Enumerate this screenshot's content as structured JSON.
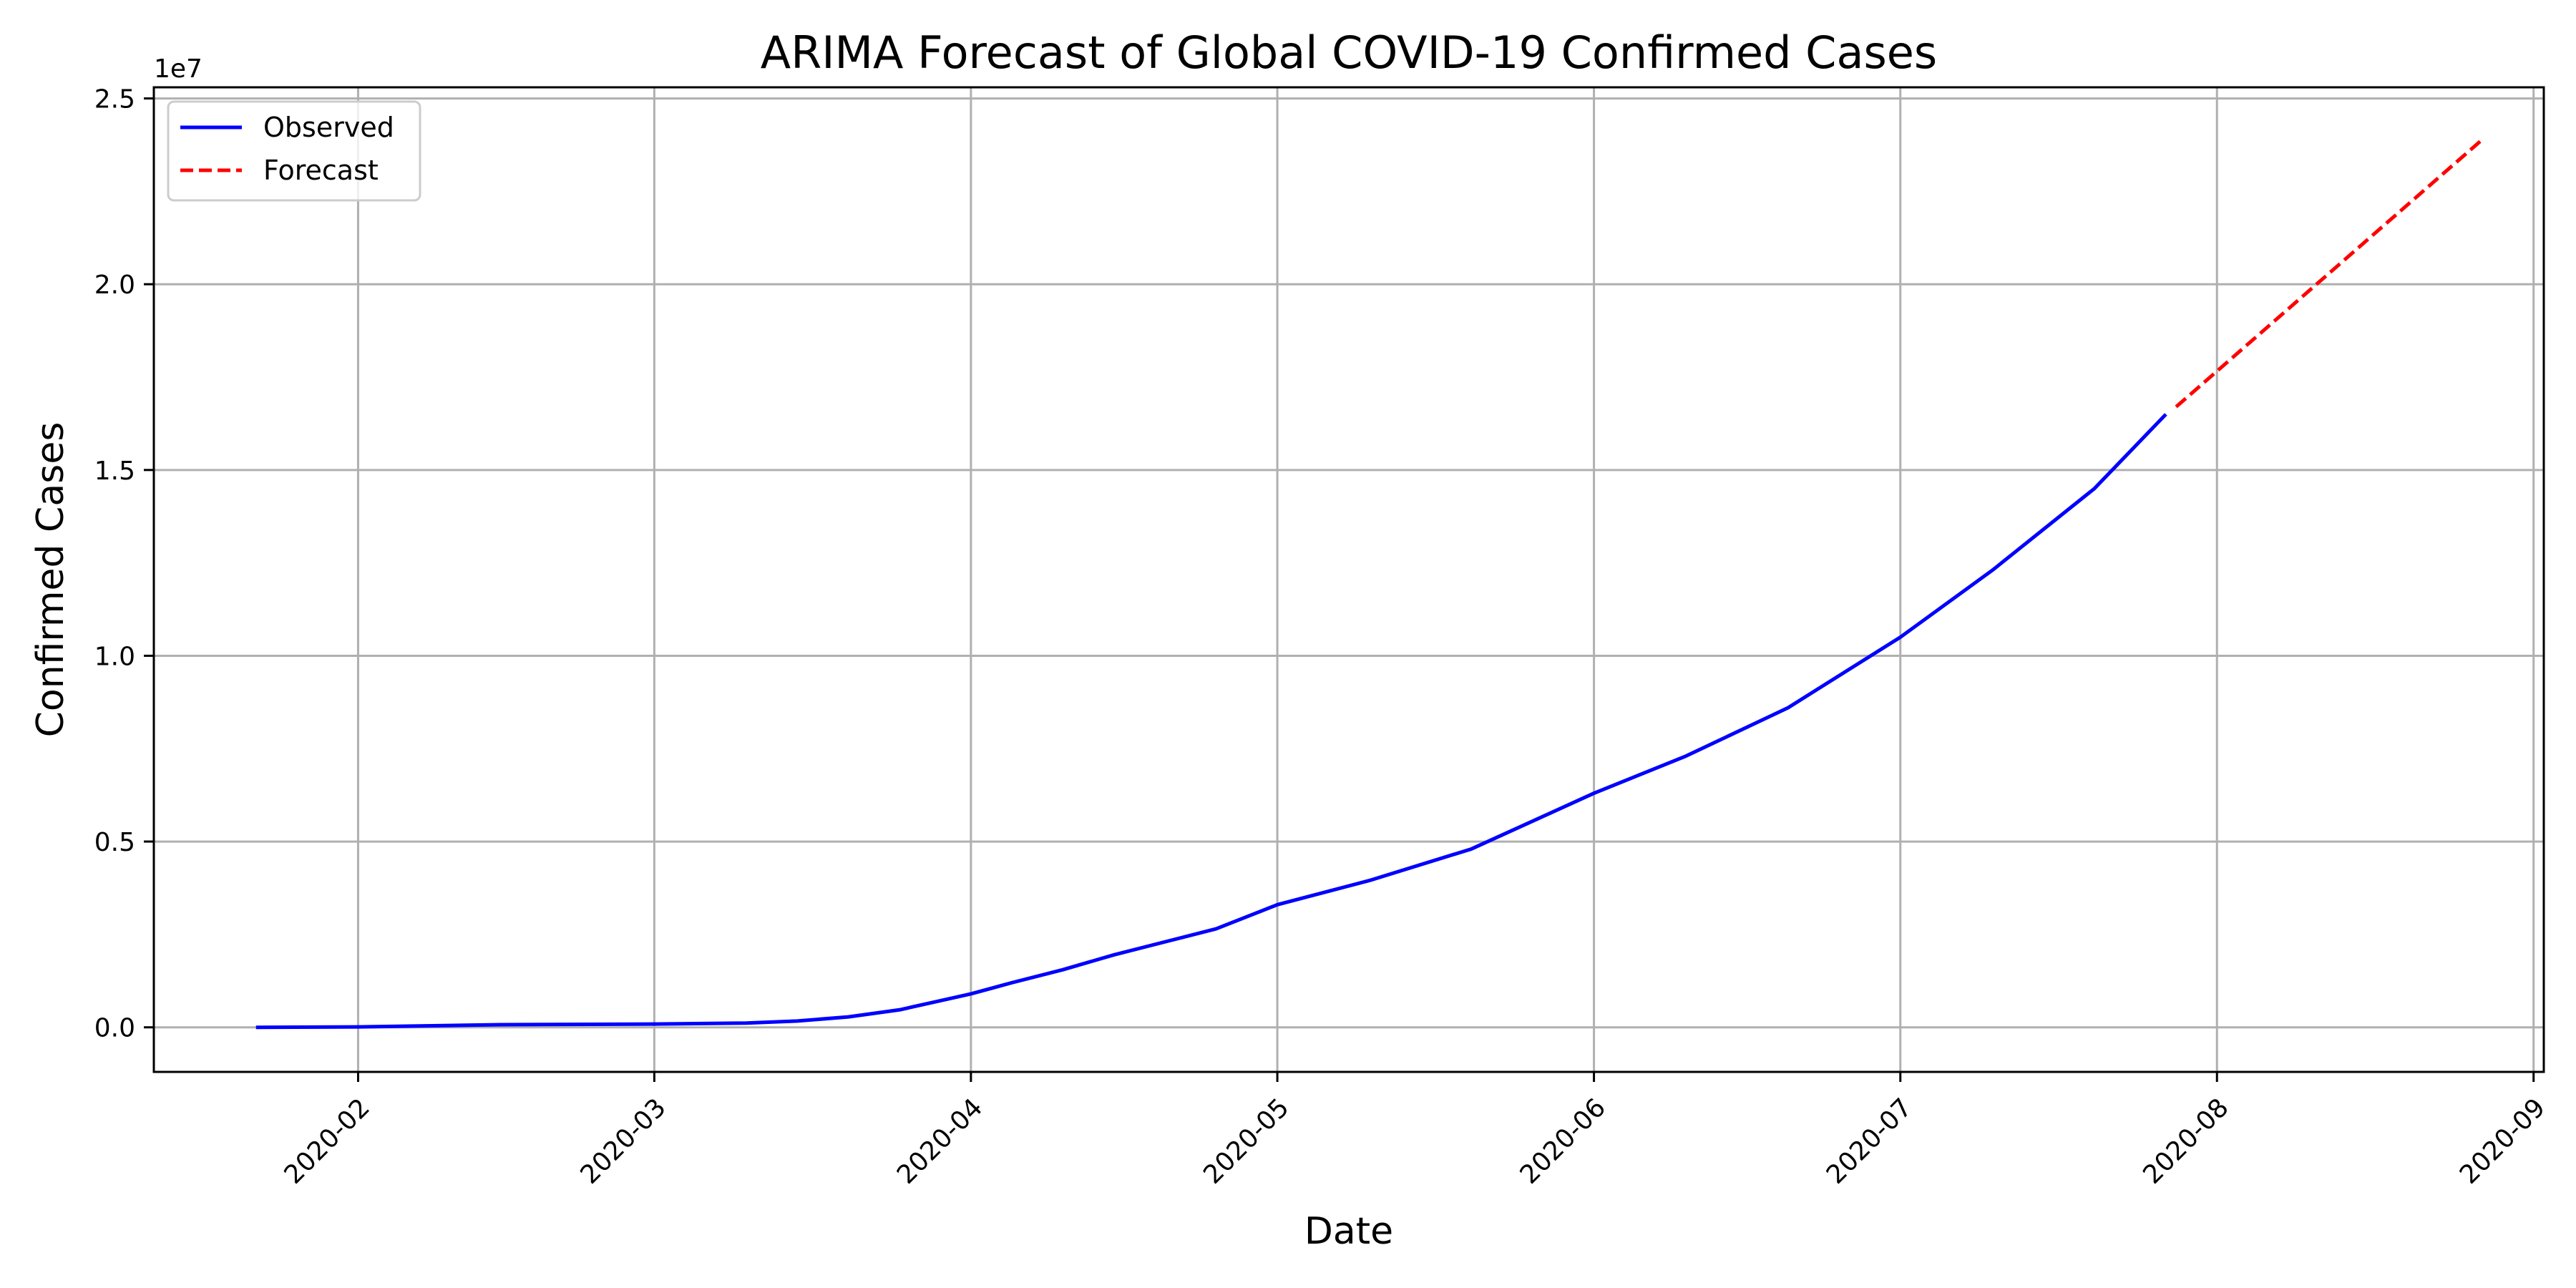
{
  "chart_data": {
    "type": "line",
    "title": "ARIMA Forecast of Global COVID-19 Confirmed Cases",
    "xlabel": "Date",
    "ylabel": "Confirmed Cases",
    "y_offset_text": "1e7",
    "x_range": [
      "2020-01-12",
      "2020-09-02"
    ],
    "ylim": [
      -1200000,
      25300000
    ],
    "x_ticks": [
      "2020-02",
      "2020-03",
      "2020-04",
      "2020-05",
      "2020-06",
      "2020-07",
      "2020-08",
      "2020-09"
    ],
    "y_ticks": [
      0.0,
      0.5,
      1.0,
      1.5,
      2.0,
      2.5
    ],
    "y_tick_labels": [
      "0.0",
      "0.5",
      "1.0",
      "1.5",
      "2.0",
      "2.5"
    ],
    "grid": true,
    "legend_position": "top-left",
    "series": [
      {
        "name": "Observed",
        "color": "#0000ff",
        "style": "solid",
        "points": [
          [
            "2020-01-22",
            0
          ],
          [
            "2020-02-01",
            12000
          ],
          [
            "2020-02-15",
            70000
          ],
          [
            "2020-03-01",
            88000
          ],
          [
            "2020-03-10",
            115000
          ],
          [
            "2020-03-15",
            170000
          ],
          [
            "2020-03-20",
            280000
          ],
          [
            "2020-03-25",
            470000
          ],
          [
            "2020-04-01",
            900000
          ],
          [
            "2020-04-05",
            1200000
          ],
          [
            "2020-04-10",
            1550000
          ],
          [
            "2020-04-15",
            1950000
          ],
          [
            "2020-04-20",
            2300000
          ],
          [
            "2020-04-25",
            2650000
          ],
          [
            "2020-05-01",
            3300000
          ],
          [
            "2020-05-10",
            3950000
          ],
          [
            "2020-05-20",
            4800000
          ],
          [
            "2020-06-01",
            6300000
          ],
          [
            "2020-06-10",
            7300000
          ],
          [
            "2020-06-20",
            8600000
          ],
          [
            "2020-07-01",
            10500000
          ],
          [
            "2020-07-10",
            12300000
          ],
          [
            "2020-07-20",
            14500000
          ],
          [
            "2020-07-27",
            16500000
          ]
        ]
      },
      {
        "name": "Forecast",
        "color": "#ff0000",
        "style": "dashed",
        "points": [
          [
            "2020-07-28",
            16700000
          ],
          [
            "2020-08-27",
            23900000
          ]
        ]
      }
    ]
  }
}
